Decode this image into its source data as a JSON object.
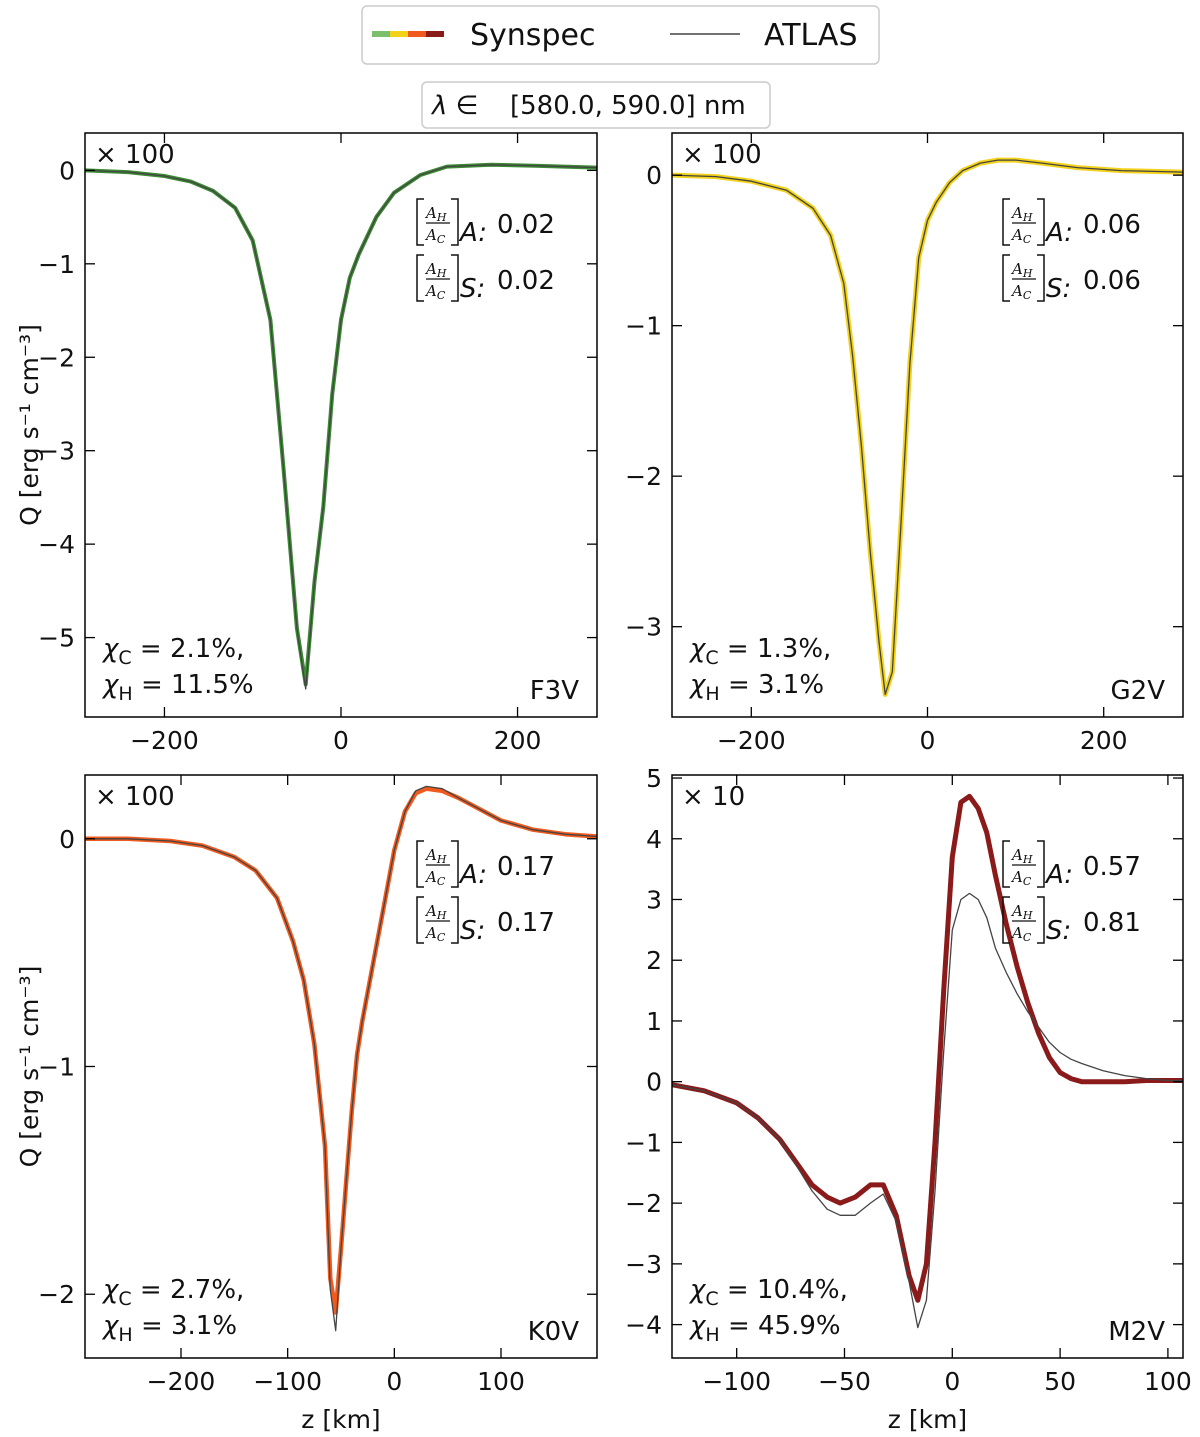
{
  "legend": {
    "synspec_label": "Synspec",
    "atlas_label": "ATLAS",
    "synspec_colors": [
      "#7cbf6a",
      "#f2d21b",
      "#f05a1e",
      "#8b1a1a"
    ],
    "atlas_color": "#444444"
  },
  "wavelength_box": {
    "prefix": "λ ∈",
    "range": "[580.0, 590.0] nm"
  },
  "chart_data": [
    {
      "type": "line",
      "star": "F3V",
      "scale_label": "× 100",
      "ylabel": "Q [erg s⁻¹ cm⁻³]",
      "xlabel": "",
      "xlim": [
        -290,
        290
      ],
      "ylim": [
        -5.85,
        0.4
      ],
      "xticks": [
        -200,
        0,
        200
      ],
      "yticks": [
        0,
        -1,
        -2,
        -3,
        -4,
        -5
      ],
      "ratio_A_label": "A:",
      "ratio_A_value": "0.02",
      "ratio_S_label": "S:",
      "ratio_S_value": "0.02",
      "chi_C": "2.1%,",
      "chi_H": "11.5%",
      "synspec_color": "#3a8a32",
      "synspec_width": 4,
      "x": [
        -290,
        -240,
        -200,
        -170,
        -145,
        -120,
        -100,
        -80,
        -65,
        -50,
        -40,
        -30,
        -20,
        -10,
        0,
        10,
        20,
        40,
        60,
        90,
        120,
        170,
        220,
        290
      ],
      "series": [
        {
          "name": "Synspec",
          "values": [
            0.0,
            -0.02,
            -0.06,
            -0.12,
            -0.22,
            -0.4,
            -0.75,
            -1.6,
            -3.2,
            -4.9,
            -5.5,
            -4.4,
            -3.6,
            -2.4,
            -1.6,
            -1.15,
            -0.9,
            -0.5,
            -0.24,
            -0.05,
            0.04,
            0.06,
            0.05,
            0.03
          ]
        },
        {
          "name": "ATLAS",
          "values": [
            0.0,
            -0.02,
            -0.06,
            -0.12,
            -0.22,
            -0.4,
            -0.75,
            -1.6,
            -3.2,
            -4.9,
            -5.55,
            -4.4,
            -3.6,
            -2.4,
            -1.6,
            -1.15,
            -0.9,
            -0.5,
            -0.24,
            -0.05,
            0.04,
            0.06,
            0.05,
            0.03
          ]
        }
      ]
    },
    {
      "type": "line",
      "star": "G2V",
      "scale_label": "× 100",
      "ylabel": "",
      "xlabel": "",
      "xlim": [
        -290,
        290
      ],
      "ylim": [
        -3.6,
        0.28
      ],
      "xticks": [
        -200,
        0,
        200
      ],
      "yticks": [
        0,
        -1,
        -2,
        -3
      ],
      "ratio_A_label": "A:",
      "ratio_A_value": "0.06",
      "ratio_S_label": "S:",
      "ratio_S_value": "0.06",
      "chi_C": "1.3%,",
      "chi_H": "3.1%",
      "synspec_color": "#f2d21b",
      "synspec_width": 5,
      "x": [
        -290,
        -240,
        -200,
        -160,
        -130,
        -110,
        -95,
        -85,
        -75,
        -65,
        -55,
        -48,
        -40,
        -30,
        -20,
        -10,
        0,
        10,
        25,
        40,
        60,
        80,
        100,
        130,
        170,
        220,
        290
      ],
      "series": [
        {
          "name": "Synspec",
          "values": [
            0.0,
            -0.01,
            -0.04,
            -0.1,
            -0.22,
            -0.4,
            -0.72,
            -1.2,
            -1.8,
            -2.5,
            -3.1,
            -3.45,
            -3.3,
            -2.3,
            -1.25,
            -0.55,
            -0.3,
            -0.18,
            -0.05,
            0.03,
            0.08,
            0.1,
            0.1,
            0.08,
            0.05,
            0.03,
            0.02
          ]
        },
        {
          "name": "ATLAS",
          "values": [
            0.0,
            -0.01,
            -0.04,
            -0.1,
            -0.22,
            -0.4,
            -0.72,
            -1.2,
            -1.8,
            -2.5,
            -3.1,
            -3.45,
            -3.3,
            -2.3,
            -1.25,
            -0.55,
            -0.3,
            -0.18,
            -0.05,
            0.03,
            0.08,
            0.1,
            0.1,
            0.08,
            0.05,
            0.03,
            0.02
          ]
        }
      ]
    },
    {
      "type": "line",
      "star": "K0V",
      "scale_label": "× 100",
      "ylabel": "Q [erg s⁻¹ cm⁻³]",
      "xlabel": "z [km]",
      "xlim": [
        -290,
        190
      ],
      "ylim": [
        -2.28,
        0.28
      ],
      "xticks": [
        -200,
        -100,
        0,
        100
      ],
      "yticks": [
        0,
        -1,
        -2
      ],
      "ratio_A_label": "A:",
      "ratio_A_value": "0.17",
      "ratio_S_label": "S:",
      "ratio_S_value": "0.17",
      "chi_C": "2.7%,",
      "chi_H": "3.1%",
      "synspec_color": "#f05a1e",
      "synspec_width": 4.5,
      "x": [
        -290,
        -250,
        -210,
        -180,
        -150,
        -130,
        -110,
        -95,
        -85,
        -75,
        -65,
        -60,
        -55,
        -50,
        -45,
        -40,
        -35,
        -30,
        -20,
        -10,
        0,
        10,
        20,
        30,
        45,
        60,
        80,
        100,
        130,
        160,
        190
      ],
      "series": [
        {
          "name": "Synspec",
          "values": [
            0.0,
            0.0,
            -0.01,
            -0.03,
            -0.08,
            -0.14,
            -0.26,
            -0.45,
            -0.62,
            -0.9,
            -1.35,
            -1.93,
            -2.08,
            -1.8,
            -1.5,
            -1.2,
            -0.95,
            -0.8,
            -0.55,
            -0.3,
            -0.05,
            0.12,
            0.2,
            0.22,
            0.21,
            0.18,
            0.13,
            0.08,
            0.04,
            0.02,
            0.01
          ]
        },
        {
          "name": "ATLAS",
          "values": [
            0.0,
            0.0,
            -0.01,
            -0.03,
            -0.08,
            -0.14,
            -0.26,
            -0.45,
            -0.62,
            -0.9,
            -1.35,
            -1.98,
            -2.16,
            -1.8,
            -1.5,
            -1.2,
            -0.95,
            -0.8,
            -0.55,
            -0.3,
            -0.05,
            0.12,
            0.21,
            0.23,
            0.22,
            0.18,
            0.13,
            0.08,
            0.04,
            0.02,
            0.01
          ]
        }
      ]
    },
    {
      "type": "line",
      "star": "M2V",
      "scale_label": "× 10",
      "ylabel": "",
      "xlabel": "z [km]",
      "xlim": [
        -130,
        107
      ],
      "ylim": [
        -4.55,
        5.05
      ],
      "xticks": [
        -100,
        -50,
        0,
        50,
        100
      ],
      "yticks": [
        5,
        4,
        3,
        2,
        1,
        0,
        -1,
        -2,
        -3,
        -4
      ],
      "ratio_A_label": "A:",
      "ratio_A_value": "0.57",
      "ratio_S_label": "S:",
      "ratio_S_value": "0.81",
      "chi_C": "10.4%,",
      "chi_H": "45.9%",
      "synspec_color": "#8b1a1a",
      "synspec_width": 5,
      "x": [
        -130,
        -115,
        -100,
        -90,
        -80,
        -72,
        -65,
        -58,
        -52,
        -45,
        -38,
        -32,
        -26,
        -20,
        -16,
        -12,
        -8,
        -4,
        0,
        4,
        8,
        12,
        16,
        20,
        25,
        30,
        35,
        40,
        45,
        50,
        55,
        60,
        70,
        80,
        90,
        100,
        107
      ],
      "series": [
        {
          "name": "Synspec",
          "values": [
            -0.05,
            -0.15,
            -0.35,
            -0.6,
            -0.95,
            -1.35,
            -1.7,
            -1.9,
            -2.0,
            -1.9,
            -1.7,
            -1.7,
            -2.2,
            -3.2,
            -3.6,
            -3.0,
            -1.0,
            1.5,
            3.7,
            4.6,
            4.7,
            4.5,
            4.1,
            3.4,
            2.6,
            1.9,
            1.3,
            0.8,
            0.4,
            0.15,
            0.05,
            0.0,
            0.0,
            0.0,
            0.02,
            0.02,
            0.02
          ]
        },
        {
          "name": "ATLAS",
          "values": [
            -0.05,
            -0.15,
            -0.35,
            -0.6,
            -0.95,
            -1.4,
            -1.8,
            -2.1,
            -2.2,
            -2.2,
            -2.0,
            -1.85,
            -2.3,
            -3.3,
            -4.05,
            -3.6,
            -1.8,
            0.5,
            2.5,
            3.0,
            3.1,
            3.0,
            2.7,
            2.2,
            1.8,
            1.45,
            1.15,
            0.9,
            0.65,
            0.48,
            0.37,
            0.3,
            0.18,
            0.1,
            0.05,
            0.02,
            0.02
          ]
        }
      ]
    }
  ]
}
